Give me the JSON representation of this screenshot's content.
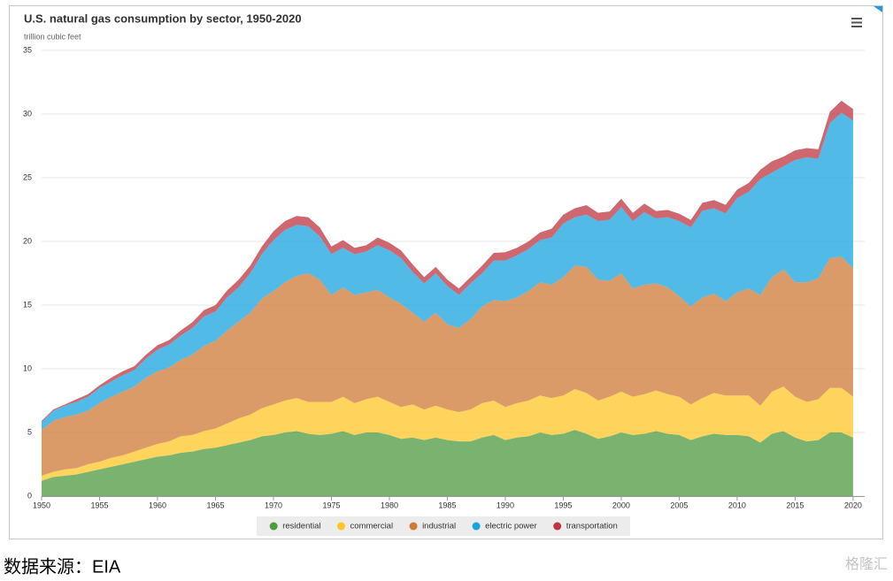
{
  "chart_data": {
    "type": "stacked_area",
    "title": "U.S. natural gas consumption by sector, 1950-2020",
    "subtitle": "trillion cubic feet",
    "x": [
      1950,
      1951,
      1952,
      1953,
      1954,
      1955,
      1956,
      1957,
      1958,
      1959,
      1960,
      1961,
      1962,
      1963,
      1964,
      1965,
      1966,
      1967,
      1968,
      1969,
      1970,
      1971,
      1972,
      1973,
      1974,
      1975,
      1976,
      1977,
      1978,
      1979,
      1980,
      1981,
      1982,
      1983,
      1984,
      1985,
      1986,
      1987,
      1988,
      1989,
      1990,
      1991,
      1992,
      1993,
      1994,
      1995,
      1996,
      1997,
      1998,
      1999,
      2000,
      2001,
      2002,
      2003,
      2004,
      2005,
      2006,
      2007,
      2008,
      2009,
      2010,
      2011,
      2012,
      2013,
      2014,
      2015,
      2016,
      2017,
      2018,
      2019,
      2020
    ],
    "xlim": [
      1950,
      2021
    ],
    "xticks": [
      1950,
      1955,
      1960,
      1965,
      1970,
      1975,
      1980,
      1985,
      1990,
      1995,
      2000,
      2005,
      2010,
      2015,
      2020
    ],
    "ylim": [
      0,
      35
    ],
    "yticks": [
      0,
      5,
      10,
      15,
      20,
      25,
      30,
      35
    ],
    "grid": true,
    "legend": "bottom",
    "series": [
      {
        "name": "residential",
        "color": "#4e9a40",
        "values": [
          1.2,
          1.5,
          1.6,
          1.7,
          1.9,
          2.1,
          2.3,
          2.5,
          2.7,
          2.9,
          3.1,
          3.2,
          3.4,
          3.5,
          3.7,
          3.8,
          4.0,
          4.2,
          4.4,
          4.7,
          4.8,
          5.0,
          5.1,
          4.9,
          4.8,
          4.9,
          5.1,
          4.8,
          5.0,
          5.0,
          4.8,
          4.5,
          4.6,
          4.4,
          4.6,
          4.4,
          4.3,
          4.3,
          4.6,
          4.8,
          4.4,
          4.6,
          4.7,
          5.0,
          4.8,
          4.9,
          5.2,
          4.9,
          4.5,
          4.7,
          5.0,
          4.8,
          4.9,
          5.1,
          4.9,
          4.8,
          4.4,
          4.7,
          4.9,
          4.8,
          4.8,
          4.7,
          4.2,
          4.9,
          5.1,
          4.6,
          4.3,
          4.4,
          5.0,
          5.0,
          4.6
        ]
      },
      {
        "name": "commercial",
        "color": "#ffc526",
        "values": [
          0.4,
          0.4,
          0.5,
          0.5,
          0.6,
          0.6,
          0.7,
          0.7,
          0.8,
          0.9,
          1.0,
          1.1,
          1.3,
          1.3,
          1.4,
          1.5,
          1.7,
          1.9,
          2.0,
          2.2,
          2.4,
          2.5,
          2.6,
          2.5,
          2.6,
          2.5,
          2.7,
          2.5,
          2.6,
          2.8,
          2.6,
          2.5,
          2.6,
          2.4,
          2.5,
          2.4,
          2.3,
          2.5,
          2.7,
          2.7,
          2.6,
          2.7,
          2.8,
          2.9,
          2.9,
          3.0,
          3.2,
          3.2,
          3.0,
          3.1,
          3.2,
          3.0,
          3.1,
          3.2,
          3.1,
          3.0,
          2.8,
          3.0,
          3.2,
          3.1,
          3.1,
          3.2,
          2.9,
          3.3,
          3.5,
          3.2,
          3.1,
          3.2,
          3.5,
          3.5,
          3.2
        ]
      },
      {
        "name": "industrial",
        "color": "#cf7a35",
        "values": [
          3.6,
          4.0,
          4.1,
          4.2,
          4.2,
          4.6,
          4.8,
          5.0,
          5.1,
          5.5,
          5.7,
          5.8,
          6.0,
          6.3,
          6.7,
          6.9,
          7.3,
          7.6,
          8.0,
          8.6,
          8.9,
          9.3,
          9.6,
          10.1,
          9.6,
          8.4,
          8.6,
          8.5,
          8.4,
          8.4,
          8.2,
          8.1,
          7.2,
          6.9,
          7.3,
          6.7,
          6.6,
          7.1,
          7.6,
          7.9,
          8.3,
          8.3,
          8.6,
          8.9,
          8.9,
          9.3,
          9.7,
          9.9,
          9.5,
          9.1,
          9.3,
          8.5,
          8.6,
          8.4,
          8.4,
          7.9,
          7.7,
          7.9,
          7.8,
          7.4,
          8.1,
          8.4,
          8.7,
          9.0,
          9.2,
          9.0,
          9.4,
          9.5,
          10.2,
          10.3,
          10.1
        ]
      },
      {
        "name": "electric power",
        "color": "#17a3de",
        "values": [
          0.6,
          0.8,
          0.9,
          1.0,
          1.1,
          1.2,
          1.2,
          1.3,
          1.3,
          1.5,
          1.7,
          1.8,
          1.9,
          2.1,
          2.3,
          2.3,
          2.6,
          2.7,
          3.1,
          3.5,
          4.0,
          4.1,
          4.0,
          3.7,
          3.4,
          3.2,
          3.1,
          3.2,
          3.2,
          3.5,
          3.7,
          3.6,
          3.2,
          3.0,
          3.1,
          3.0,
          2.6,
          2.8,
          2.6,
          3.1,
          3.2,
          3.3,
          3.3,
          3.3,
          3.7,
          4.2,
          3.8,
          4.1,
          4.6,
          4.8,
          5.2,
          5.3,
          5.7,
          5.1,
          5.5,
          5.9,
          6.2,
          6.8,
          6.7,
          6.9,
          7.4,
          7.6,
          9.1,
          8.2,
          8.1,
          9.6,
          9.8,
          9.4,
          10.6,
          11.3,
          11.6
        ]
      },
      {
        "name": "transportation",
        "color": "#bf3440",
        "values": [
          0.1,
          0.1,
          0.1,
          0.2,
          0.2,
          0.2,
          0.3,
          0.3,
          0.3,
          0.3,
          0.35,
          0.35,
          0.4,
          0.45,
          0.5,
          0.5,
          0.55,
          0.6,
          0.6,
          0.6,
          0.7,
          0.7,
          0.7,
          0.7,
          0.7,
          0.6,
          0.6,
          0.5,
          0.5,
          0.6,
          0.6,
          0.6,
          0.6,
          0.5,
          0.5,
          0.5,
          0.5,
          0.5,
          0.6,
          0.6,
          0.65,
          0.6,
          0.6,
          0.6,
          0.7,
          0.7,
          0.7,
          0.75,
          0.65,
          0.65,
          0.66,
          0.64,
          0.67,
          0.59,
          0.57,
          0.58,
          0.58,
          0.63,
          0.65,
          0.67,
          0.67,
          0.69,
          0.73,
          0.89,
          0.76,
          0.75,
          0.73,
          0.74,
          0.88,
          0.95,
          0.9
        ]
      }
    ]
  },
  "footer": {
    "source": "数据来源：EIA",
    "watermark": "格隆汇"
  }
}
